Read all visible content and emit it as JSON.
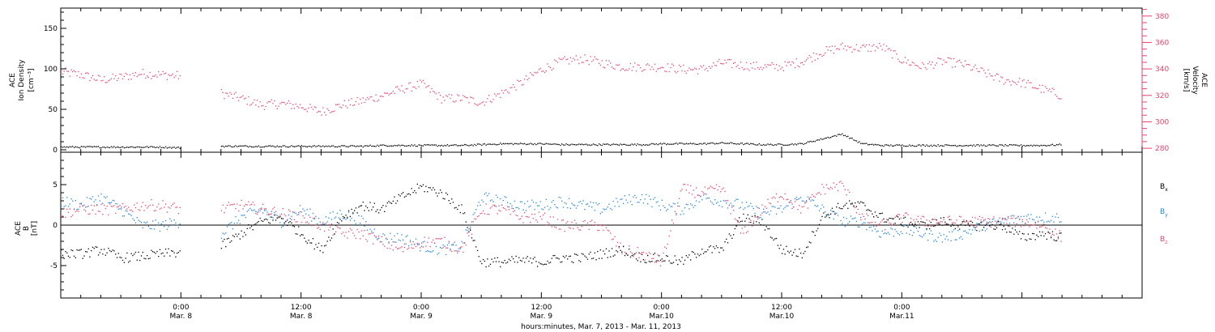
{
  "chart_data": [
    {
      "panel": "top",
      "type": "scatter",
      "left_ylabel": [
        "ACE",
        "Ion Density",
        "[cm⁻³]"
      ],
      "right_ylabel": [
        "ACE",
        "Velocity",
        "[km/s]"
      ],
      "left_ylim": [
        -3,
        175
      ],
      "left_yticks": [
        0,
        50,
        100,
        150
      ],
      "right_ylim": [
        277,
        386
      ],
      "right_yticks": [
        280,
        300,
        320,
        340,
        360,
        380
      ],
      "right_axis_color": "#e8436b",
      "series": [
        {
          "axis": "left",
          "color": "#000000",
          "x": [
            -12,
            -10,
            -8,
            -6,
            -4,
            -2,
            0,
            2,
            4,
            6,
            8,
            10,
            12,
            14,
            16,
            18,
            20,
            22,
            24,
            26,
            28,
            30,
            32,
            34,
            36,
            38,
            40,
            42,
            44,
            46,
            48,
            50,
            52,
            54,
            56,
            58,
            60,
            62,
            64,
            66,
            68,
            70,
            72,
            74,
            76,
            78,
            80,
            82,
            84,
            86,
            88
          ],
          "y": [
            4,
            4,
            4,
            4,
            4,
            4,
            3,
            null,
            5,
            5,
            5,
            5,
            5,
            5,
            5,
            5,
            6,
            6,
            6,
            6,
            6,
            7,
            8,
            8,
            8,
            7,
            7,
            7,
            7,
            7,
            8,
            8,
            8,
            9,
            8,
            7,
            7,
            8,
            14,
            20,
            8,
            6,
            6,
            6,
            6,
            6,
            6,
            6,
            6,
            6,
            7
          ]
        },
        {
          "axis": "right",
          "color": "#e8436b",
          "x": [
            -12,
            -10,
            -8,
            -6,
            -4,
            -2,
            0,
            2,
            4,
            6,
            8,
            10,
            12,
            14,
            16,
            18,
            20,
            22,
            24,
            26,
            28,
            30,
            32,
            34,
            36,
            38,
            40,
            42,
            44,
            46,
            48,
            50,
            52,
            54,
            56,
            58,
            60,
            62,
            64,
            66,
            68,
            70,
            72,
            74,
            76,
            78,
            80,
            82,
            84,
            86,
            88
          ],
          "y": [
            338,
            336,
            332,
            334,
            337,
            336,
            335,
            null,
            322,
            318,
            313,
            314,
            312,
            308,
            313,
            316,
            320,
            325,
            329,
            318,
            318,
            315,
            322,
            330,
            340,
            346,
            348,
            345,
            342,
            342,
            342,
            340,
            340,
            345,
            343,
            342,
            342,
            346,
            353,
            357,
            356,
            357,
            347,
            342,
            346,
            344,
            338,
            332,
            330,
            325,
            320
          ]
        }
      ]
    },
    {
      "panel": "bottom",
      "type": "scatter",
      "left_ylabel": [
        "ACE",
        "B",
        "[nT]"
      ],
      "left_ylim": [
        -9,
        9
      ],
      "left_yticks": [
        -5,
        0,
        5
      ],
      "zero_line": true,
      "legend_position": "right",
      "series": [
        {
          "name": "Bx",
          "color": "#000000",
          "x": [
            -12,
            -10,
            -8,
            -6,
            -4,
            -2,
            0,
            2,
            4,
            6,
            8,
            10,
            12,
            14,
            16,
            18,
            20,
            22,
            24,
            26,
            28,
            30,
            32,
            34,
            36,
            38,
            40,
            42,
            44,
            46,
            48,
            50,
            52,
            54,
            56,
            58,
            60,
            62,
            64,
            66,
            68,
            70,
            72,
            74,
            76,
            78,
            80,
            82,
            84,
            86,
            88
          ],
          "y": [
            -3.5,
            -3.5,
            -3.0,
            -4.0,
            -3.8,
            -3.5,
            -3.3,
            null,
            -2.5,
            -1.0,
            0.5,
            1.0,
            -1.0,
            -3.0,
            1.0,
            2.5,
            2.0,
            3.5,
            4.8,
            4.0,
            2.0,
            -4.5,
            -4.5,
            -4.3,
            -4.5,
            -4.0,
            -4.0,
            -3.5,
            -3.0,
            -4.0,
            -4.0,
            -4.5,
            -3.0,
            -3.0,
            1.0,
            0.5,
            -3.0,
            -3.5,
            1.0,
            2.5,
            2.5,
            1.0,
            0.5,
            0.0,
            0.5,
            0.0,
            0.0,
            0.0,
            -1.5,
            -1.0,
            -1.5
          ]
        },
        {
          "name": "By",
          "color": "#1f86e0",
          "x": [
            -12,
            -10,
            -8,
            -6,
            -4,
            -2,
            0,
            2,
            4,
            6,
            8,
            10,
            12,
            14,
            16,
            18,
            20,
            22,
            24,
            26,
            28,
            30,
            32,
            34,
            36,
            38,
            40,
            42,
            44,
            46,
            48,
            50,
            52,
            54,
            56,
            58,
            60,
            62,
            64,
            66,
            68,
            70,
            72,
            74,
            76,
            78,
            80,
            82,
            84,
            86,
            88
          ],
          "y": [
            3.0,
            2.5,
            3.5,
            2.0,
            0.0,
            0.0,
            0.5,
            null,
            -1.0,
            1.0,
            2.0,
            0.5,
            2.0,
            0.5,
            1.5,
            0.5,
            -1.5,
            -1.5,
            -2.5,
            -3.0,
            -2.5,
            3.5,
            3.0,
            2.5,
            2.5,
            3.0,
            2.5,
            2.0,
            3.0,
            3.5,
            2.5,
            2.0,
            3.5,
            3.0,
            2.5,
            1.5,
            2.0,
            3.5,
            2.0,
            0.5,
            0.5,
            -1.0,
            -0.5,
            -1.0,
            -1.5,
            -1.0,
            0.0,
            0.5,
            1.0,
            1.0,
            1.0
          ]
        },
        {
          "name": "Bz",
          "color": "#e8436b",
          "x": [
            -12,
            -10,
            -8,
            -6,
            -4,
            -2,
            0,
            2,
            4,
            6,
            8,
            10,
            12,
            14,
            16,
            18,
            20,
            22,
            24,
            26,
            28,
            30,
            32,
            34,
            36,
            38,
            40,
            42,
            44,
            46,
            48,
            50,
            52,
            54,
            56,
            58,
            60,
            62,
            64,
            66,
            68,
            70,
            72,
            74,
            76,
            78,
            80,
            82,
            84,
            86,
            88
          ],
          "y": [
            1.5,
            2.0,
            2.0,
            2.0,
            2.5,
            2.5,
            2.0,
            null,
            2.0,
            2.5,
            2.0,
            1.5,
            1.0,
            0.0,
            -1.0,
            -1.0,
            -2.0,
            -3.0,
            -2.0,
            -2.0,
            -3.0,
            2.0,
            2.0,
            1.0,
            1.0,
            0.0,
            0.0,
            0.0,
            -3.0,
            -3.5,
            -4.5,
            4.5,
            4.0,
            4.5,
            -1.0,
            2.0,
            4.0,
            2.0,
            4.5,
            5.0,
            1.0,
            0.0,
            1.0,
            0.5,
            0.5,
            0.5,
            0.5,
            0.5,
            0.5,
            0.0,
            -1.5
          ]
        }
      ]
    }
  ],
  "legend": {
    "bx": {
      "base": "B",
      "sub": "x"
    },
    "by": {
      "base": "B",
      "sub": "y"
    },
    "bz": {
      "base": "B",
      "sub": "z"
    }
  },
  "x_axis": {
    "range_hours": [
      -12,
      96
    ],
    "major_ticks_hours": [
      0,
      24,
      48,
      72,
      96
    ],
    "ticks": [
      {
        "time": "0:00",
        "date": "Mar. 8"
      },
      {
        "time": "12:00",
        "date": "Mar. 8"
      },
      {
        "time": "0:00",
        "date": "Mar. 9"
      },
      {
        "time": "12:00",
        "date": "Mar. 9"
      },
      {
        "time": "0:00",
        "date": "Mar.10"
      },
      {
        "time": "12:00",
        "date": "Mar.10"
      },
      {
        "time": "0:00",
        "date": "Mar.11"
      }
    ],
    "label": "hours:minutes, Mar.  7, 2013 - Mar. 11, 2013"
  },
  "labels": {
    "top_left": [
      "ACE",
      "Ion Density",
      "[cm⁻³]"
    ],
    "top_right": [
      "ACE",
      "Velocity",
      "[km/s]"
    ],
    "bottom_left": [
      "ACE",
      "B",
      "[nT]"
    ]
  },
  "colors": {
    "pink": "#e8436b",
    "blue": "#1f86e0",
    "black": "#000000"
  }
}
